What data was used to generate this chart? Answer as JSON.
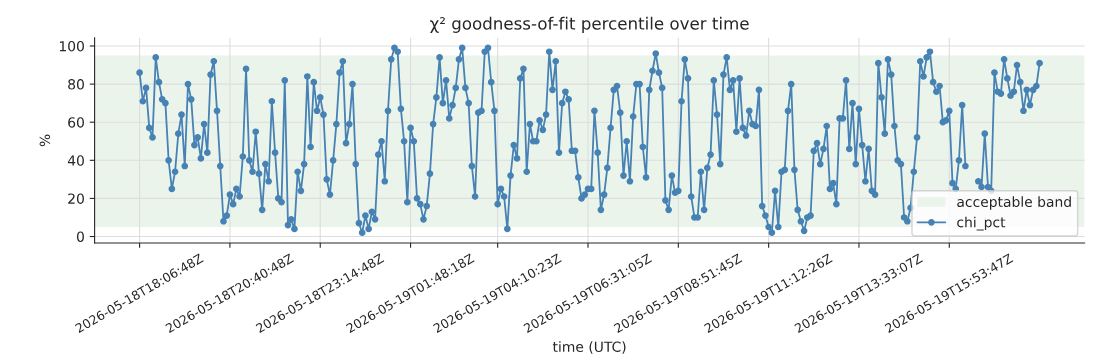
{
  "chart_data": {
    "type": "line",
    "title": "χ² goodness-of-fit percentile over time",
    "xlabel": "time (UTC)",
    "ylabel": "%",
    "categories": [
      "2026-05-18T18:06:48Z",
      null,
      null,
      null,
      null,
      null,
      null,
      null,
      null,
      null,
      null,
      null,
      null,
      null,
      null,
      null,
      null,
      null,
      null,
      null,
      null,
      null,
      null,
      null,
      null,
      null,
      null,
      null,
      "2026-05-18T20:40:48Z",
      null,
      null,
      null,
      null,
      null,
      null,
      null,
      null,
      null,
      null,
      null,
      null,
      null,
      null,
      null,
      null,
      null,
      null,
      null,
      null,
      null,
      null,
      null,
      null,
      null,
      null,
      null,
      "2026-05-18T23:14:48Z",
      null,
      null,
      null,
      null,
      null,
      null,
      null,
      null,
      null,
      null,
      null,
      null,
      null,
      null,
      null,
      null,
      null,
      null,
      null,
      null,
      null,
      null,
      null,
      null,
      null,
      null,
      null,
      "2026-05-19T01:48:18Z",
      null,
      null,
      null,
      null,
      null,
      null,
      null,
      null,
      null,
      null,
      null,
      null,
      null,
      null,
      null,
      null,
      null,
      null,
      null,
      null,
      null,
      null,
      null,
      null,
      null,
      null,
      "2026-05-19T04:10:23Z",
      null,
      null,
      null,
      null,
      null,
      null,
      null,
      null,
      null,
      null,
      null,
      null,
      null,
      null,
      null,
      null,
      null,
      null,
      null,
      null,
      null,
      null,
      null,
      null,
      null,
      null,
      null,
      "2026-05-19T06:31:05Z",
      null,
      null,
      null,
      null,
      null,
      null,
      null,
      null,
      null,
      null,
      null,
      null,
      null,
      null,
      null,
      null,
      null,
      null,
      null,
      null,
      null,
      null,
      null,
      null,
      null,
      null,
      null,
      "2026-05-19T08:51:45Z",
      null,
      null,
      null,
      null,
      null,
      null,
      null,
      null,
      null,
      null,
      null,
      null,
      null,
      null,
      null,
      null,
      null,
      null,
      null,
      null,
      null,
      null,
      null,
      null,
      null,
      null,
      null,
      "2026-05-19T11:12:26Z",
      null,
      null,
      null,
      null,
      null,
      null,
      null,
      null,
      null,
      null,
      null,
      null,
      null,
      null,
      null,
      null,
      null,
      null,
      null,
      null,
      null,
      null,
      null,
      null,
      null,
      null,
      null,
      "2026-05-19T13:33:07Z",
      null,
      null,
      null,
      null,
      null,
      null,
      null,
      null,
      null,
      null,
      null,
      null,
      null,
      null,
      null,
      null,
      null,
      null,
      null,
      null,
      null,
      null,
      null,
      null,
      null,
      null,
      null,
      "2026-05-19T15:53:47Z",
      null,
      null,
      null,
      null,
      null,
      null,
      null,
      null,
      null,
      null,
      null,
      null,
      null,
      null,
      null,
      null,
      null,
      null,
      null,
      null,
      null,
      null,
      null,
      null,
      null,
      null,
      null,
      null
    ],
    "series": [
      {
        "name": "chi_pct",
        "color": "#4682b4",
        "values": [
          86,
          71,
          78,
          57,
          52,
          94,
          81,
          72,
          70,
          40,
          25,
          34,
          54,
          64,
          37,
          80,
          72,
          48,
          52,
          41,
          59,
          44,
          85,
          92,
          66,
          37,
          8,
          11,
          22,
          17,
          25,
          21,
          42,
          88,
          40,
          34,
          55,
          33,
          14,
          38,
          29,
          71,
          44,
          20,
          18,
          82,
          6,
          9,
          4,
          34,
          24,
          38,
          84,
          47,
          81,
          66,
          73,
          64,
          30,
          22,
          40,
          59,
          86,
          92,
          49,
          59,
          80,
          38,
          7,
          2,
          11,
          4,
          13,
          9,
          43,
          50,
          29,
          66,
          93,
          99,
          97,
          67,
          50,
          18,
          57,
          50,
          20,
          17,
          9,
          16,
          33,
          59,
          73,
          94,
          70,
          82,
          62,
          69,
          78,
          93,
          99,
          78,
          70,
          37,
          21,
          65,
          66,
          97,
          99,
          81,
          66,
          17,
          25,
          21,
          4,
          32,
          48,
          41,
          83,
          88,
          34,
          59,
          50,
          50,
          61,
          56,
          64,
          97,
          77,
          92,
          44,
          70,
          76,
          72,
          45,
          45,
          31,
          20,
          22,
          25,
          25,
          66,
          44,
          14,
          22,
          36,
          57,
          77,
          79,
          65,
          32,
          50,
          29,
          63,
          80,
          80,
          47,
          31,
          77,
          87,
          96,
          86,
          78,
          19,
          14,
          32,
          23,
          24,
          71,
          93,
          83,
          21,
          10,
          10,
          34,
          14,
          36,
          43,
          82,
          64,
          38,
          85,
          94,
          77,
          82,
          55,
          83,
          57,
          53,
          66,
          59,
          58,
          77,
          16,
          11,
          5,
          2,
          24,
          5,
          34,
          35,
          66,
          80,
          35,
          14,
          8,
          3,
          10,
          11,
          45,
          49,
          38,
          46,
          58,
          25,
          28,
          17,
          62,
          62,
          82,
          46,
          70,
          38,
          67,
          48,
          29,
          46,
          24,
          22,
          91,
          73,
          54,
          93,
          85,
          58,
          40,
          38,
          10,
          8,
          15,
          34,
          52,
          92,
          84,
          94,
          97,
          81,
          76,
          79,
          60,
          61,
          66,
          28,
          25,
          40,
          69,
          37,
          null,
          null,
          null,
          29,
          26,
          54,
          26,
          24,
          86,
          76,
          75,
          93,
          83,
          74,
          76,
          90,
          81,
          66,
          77,
          69,
          77,
          79,
          91
        ]
      }
    ],
    "bands": [
      {
        "axis": "y",
        "from": 5,
        "to": 95,
        "label": "acceptable band",
        "color": "#ebf4eb"
      }
    ],
    "ylim": [
      -3.4,
      104.3
    ],
    "yticks": [
      0,
      20,
      40,
      60,
      80,
      100
    ],
    "grid": true,
    "legend": "bottom right",
    "marker": "circle",
    "line_style": "solid"
  }
}
